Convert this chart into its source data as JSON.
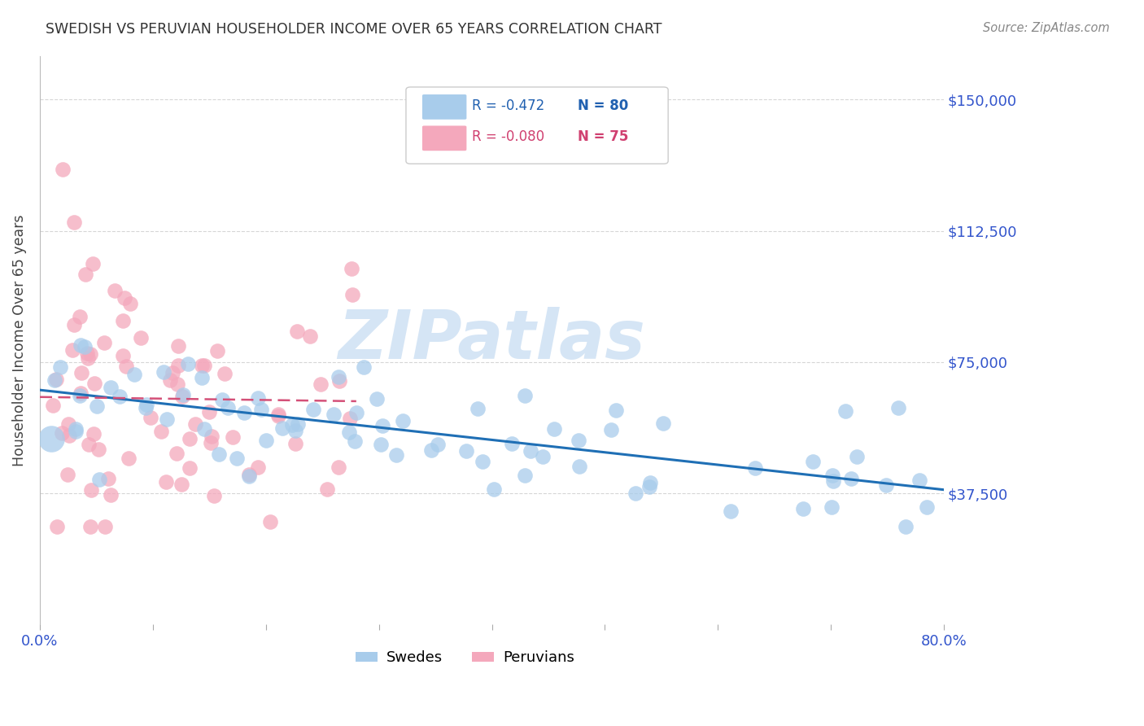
{
  "title": "SWEDISH VS PERUVIAN HOUSEHOLDER INCOME OVER 65 YEARS CORRELATION CHART",
  "source": "Source: ZipAtlas.com",
  "ylabel": "Householder Income Over 65 years",
  "ylim": [
    0,
    162500
  ],
  "xlim": [
    0.0,
    0.8
  ],
  "yticks": [
    37500,
    75000,
    112500,
    150000
  ],
  "ytick_labels": [
    "$37,500",
    "$75,000",
    "$112,500",
    "$150,000"
  ],
  "legend_blue_r": "-0.472",
  "legend_blue_n": "80",
  "legend_pink_r": "-0.080",
  "legend_pink_n": "75",
  "blue_scatter_color": "#a8cceb",
  "pink_scatter_color": "#f4a8bc",
  "blue_line_color": "#1f6fb5",
  "pink_line_color": "#d45078",
  "blue_text_color": "#2060b0",
  "pink_text_color": "#d04070",
  "axis_text_color": "#3355cc",
  "watermark_color": "#d5e5f5",
  "grid_color": "#cccccc",
  "title_color": "#333333",
  "source_color": "#888888",
  "background_color": "#ffffff"
}
